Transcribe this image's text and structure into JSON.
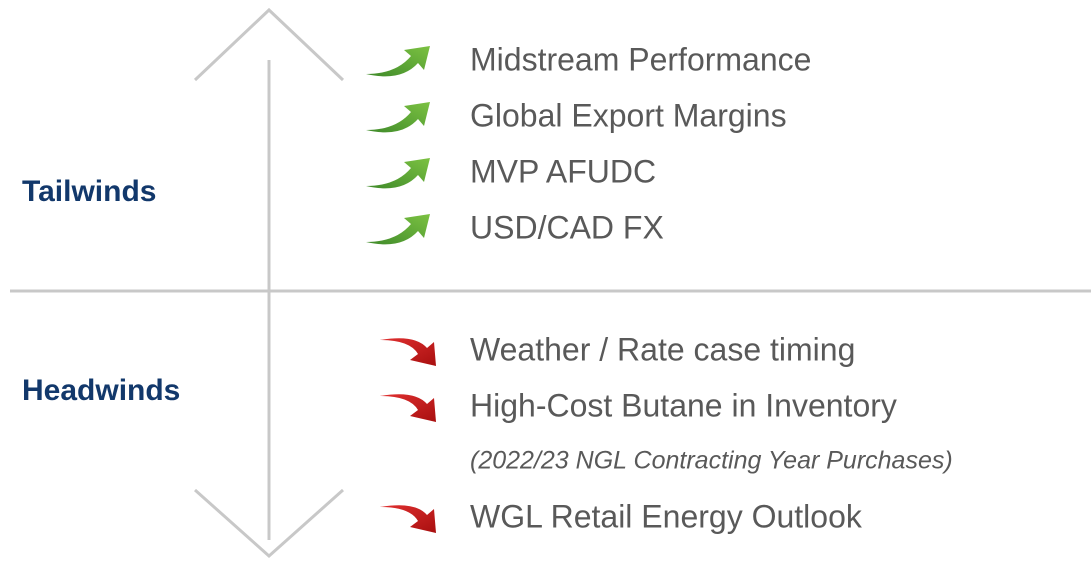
{
  "tailwinds": {
    "label": "Tailwinds",
    "items": [
      {
        "text": "Midstream Performance"
      },
      {
        "text": "Global Export Margins"
      },
      {
        "text": "MVP AFUDC"
      },
      {
        "text": "USD/CAD FX"
      }
    ]
  },
  "headwinds": {
    "label": "Headwinds",
    "items": [
      {
        "text": "Weather / Rate case timing"
      },
      {
        "text": "High-Cost Butane in Inventory",
        "note": "(2022/23 NGL Contracting Year Purchases)"
      },
      {
        "text": "WGL Retail Energy Outlook"
      }
    ]
  }
}
